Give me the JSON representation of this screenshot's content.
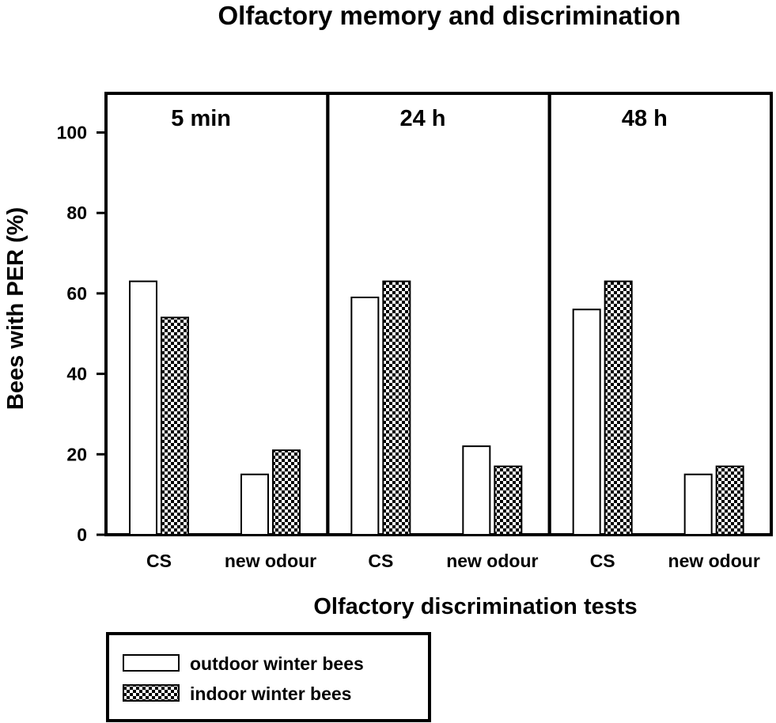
{
  "chart_data": {
    "type": "bar",
    "title": "Olfactory memory and discrimination",
    "xlabel": "Olfactory discrimination tests",
    "ylabel": "Bees with PER (%)",
    "ylim": [
      0,
      110
    ],
    "yticks": [
      "0",
      "20",
      "40",
      "60",
      "80",
      "100"
    ],
    "grid": false,
    "legend_position": "bottom-left",
    "panels": [
      {
        "label": "5 min",
        "categories": [
          "CS",
          "new odour"
        ],
        "series": [
          {
            "name": "outdoor winter bees",
            "values": [
              63,
              15
            ]
          },
          {
            "name": "indoor winter bees",
            "values": [
              54,
              21
            ]
          }
        ]
      },
      {
        "label": "24 h",
        "categories": [
          "CS",
          "new odour"
        ],
        "series": [
          {
            "name": "outdoor winter bees",
            "values": [
              59,
              22
            ]
          },
          {
            "name": "indoor winter bees",
            "values": [
              63,
              17
            ]
          }
        ]
      },
      {
        "label": "48 h",
        "categories": [
          "CS",
          "new odour"
        ],
        "series": [
          {
            "name": "outdoor winter bees",
            "values": [
              56,
              15
            ]
          },
          {
            "name": "indoor winter bees",
            "values": [
              63,
              17
            ]
          }
        ]
      }
    ],
    "legend": [
      {
        "name": "outdoor winter bees",
        "fill": "open"
      },
      {
        "name": "indoor winter bees",
        "fill": "checkered"
      }
    ],
    "colors": {
      "outdoor": "#ffffff",
      "indoor_pattern": "#000000",
      "frame": "#000000"
    }
  }
}
